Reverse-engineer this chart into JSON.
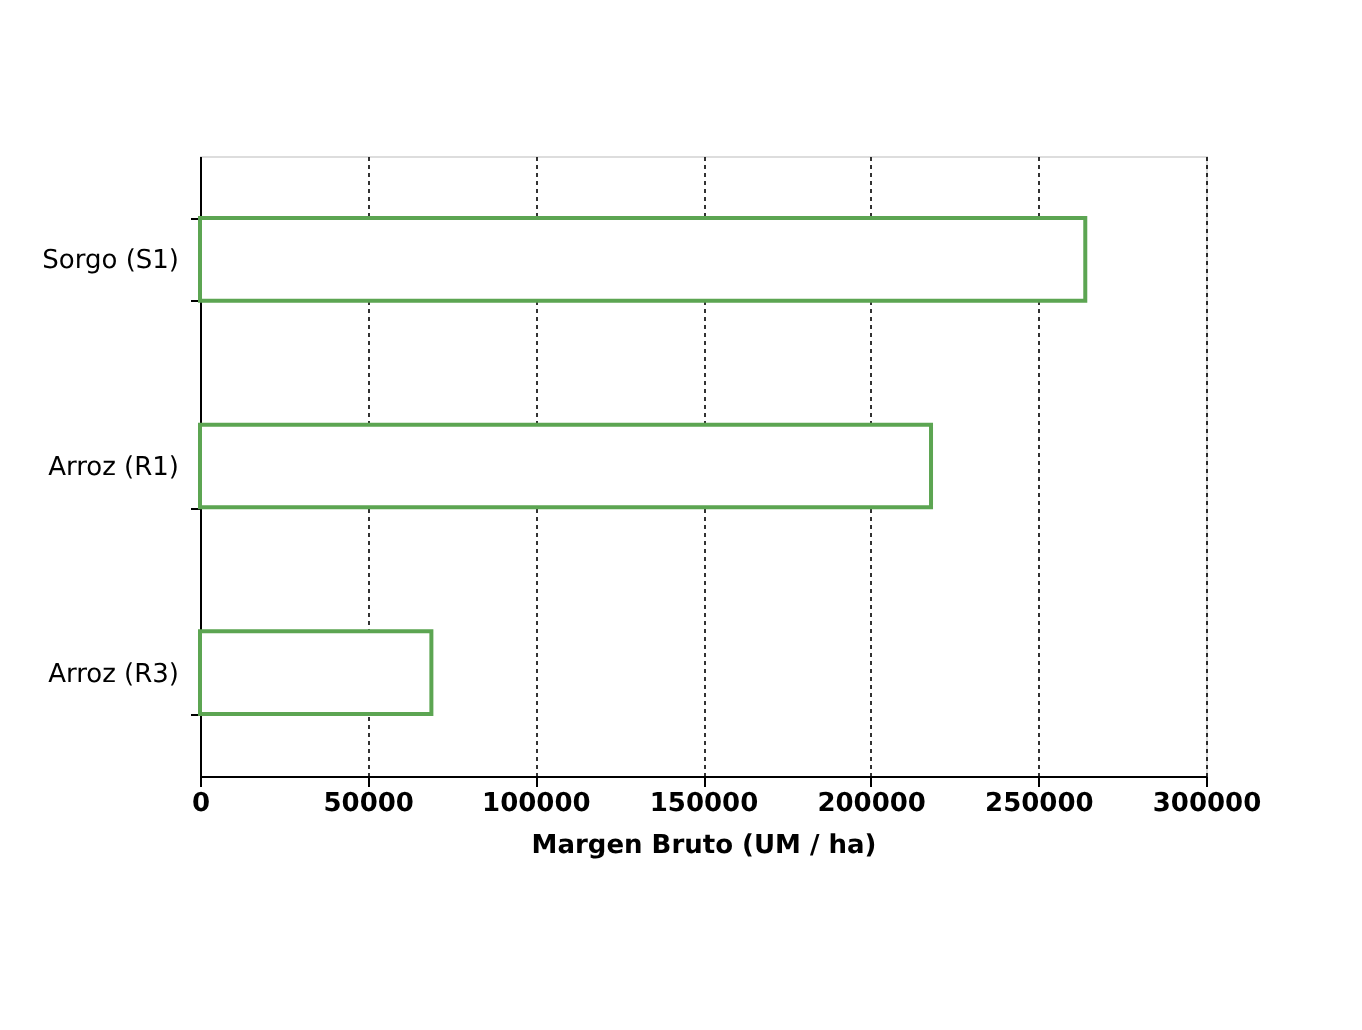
{
  "chart_data": {
    "type": "bar",
    "orientation": "horizontal",
    "categories": [
      "Sorgo (S1)",
      "Arroz (R1)",
      "Arroz (R3)"
    ],
    "values": [
      264000,
      218000,
      69000
    ],
    "color": "#5ca552",
    "xlabel": "Margen Bruto (UM / ha)",
    "xlim": [
      0,
      300000
    ],
    "xticks": [
      0,
      50000,
      100000,
      150000,
      200000,
      250000,
      300000
    ],
    "grid": "x"
  }
}
